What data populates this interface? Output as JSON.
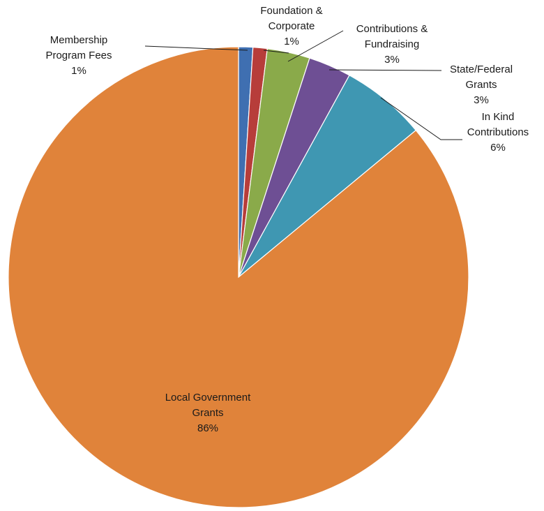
{
  "chart_data": {
    "type": "pie",
    "title": "",
    "start": "12-o'clock",
    "direction": "clockwise",
    "slices": [
      {
        "name": "Membership Program Fees",
        "label_lines": [
          "Membership",
          "Program Fees"
        ],
        "value_label": "1%",
        "value": 1,
        "color": "#3f6fb1"
      },
      {
        "name": "Foundation & Corporate",
        "label_lines": [
          "Foundation &",
          "Corporate"
        ],
        "value_label": "1%",
        "value": 1,
        "color": "#b73d3a"
      },
      {
        "name": "Contributions & Fundraising",
        "label_lines": [
          "Contributions &",
          "Fundraising"
        ],
        "value_label": "3%",
        "value": 3,
        "color": "#8aaa4a"
      },
      {
        "name": "State/Federal Grants",
        "label_lines": [
          "State/Federal",
          "Grants"
        ],
        "value_label": "3%",
        "value": 3,
        "color": "#6e4f94"
      },
      {
        "name": "In Kind Contributions",
        "label_lines": [
          "In Kind",
          "Contributions"
        ],
        "value_label": "6%",
        "value": 6,
        "color": "#3f97b2"
      },
      {
        "name": "Local Government Grants",
        "label_lines": [
          "Local Government",
          "Grants"
        ],
        "value_label": "86%",
        "value": 86,
        "color": "#e0833a"
      }
    ]
  }
}
